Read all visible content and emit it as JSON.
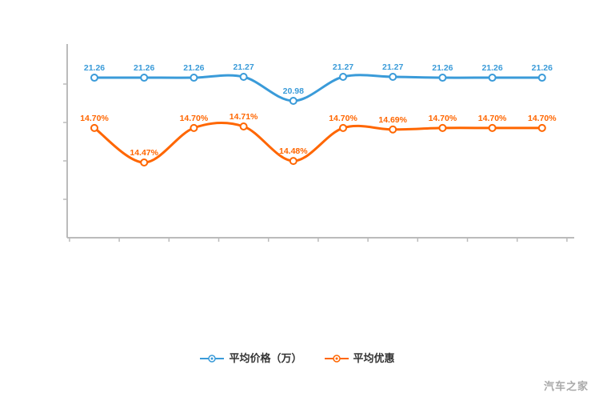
{
  "watermark": "汽车之家",
  "colors": {
    "blue": "#3a9bd9",
    "orange": "#ff6600",
    "axis": "#bbbbbb",
    "marker_fill": "#ffffff"
  },
  "chart_data": {
    "type": "line",
    "title": "",
    "points": 10,
    "x_axis": {
      "tick_labels_visible": false,
      "tick_labels": []
    },
    "y_axis": {
      "tick_labels_visible": false,
      "tick_labels": []
    },
    "grid": false,
    "legend_position": "bottom",
    "series": [
      {
        "name": "平均价格（万）",
        "color": "#3a9bd9",
        "values": [
          21.26,
          21.26,
          21.26,
          21.27,
          20.98,
          21.27,
          21.27,
          21.26,
          21.26,
          21.26
        ],
        "labels": [
          "21.26",
          "21.26",
          "21.26",
          "21.27",
          "20.98",
          "21.27",
          "21.27",
          "21.26",
          "21.26",
          "21.26"
        ]
      },
      {
        "name": "平均优惠",
        "color": "#ff6600",
        "values": [
          14.7,
          14.47,
          14.7,
          14.71,
          14.48,
          14.7,
          14.69,
          14.7,
          14.7,
          14.7
        ],
        "labels": [
          "14.70%",
          "14.47%",
          "14.70%",
          "14.71%",
          "14.48%",
          "14.70%",
          "14.69%",
          "14.70%",
          "14.70%",
          "14.70%"
        ]
      }
    ]
  }
}
